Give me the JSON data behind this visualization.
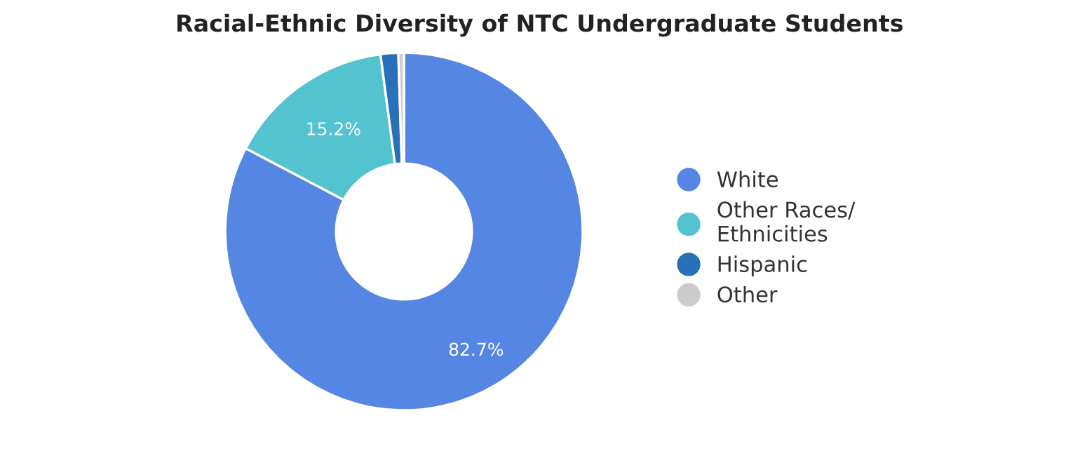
{
  "chart_data": {
    "type": "donut",
    "title": "Racial-Ethnic Diversity of NTC Undergraduate Students",
    "categories": [
      "White",
      "Other Races/\nEthnicities",
      "Hispanic",
      "Other"
    ],
    "values": [
      82.7,
      15.2,
      1.6,
      0.5
    ],
    "colors": [
      "#5686e3",
      "#54c3d0",
      "#2871b8",
      "#cccccc"
    ],
    "value_labels": [
      "82.7%",
      "15.2%",
      null,
      null
    ],
    "legend": "right"
  }
}
